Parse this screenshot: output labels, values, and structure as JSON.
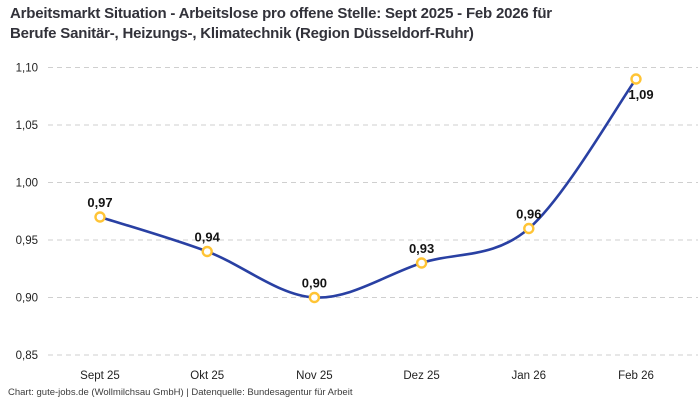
{
  "header": {
    "title_line1": "Arbeitsmarkt Situation - Arbeitslose pro offene Stelle: Sept 2025 - Feb 2026 für",
    "title_line2": "Berufe Sanitär-, Heizungs-, Klimatechnik (Region Düsseldorf-Ruhr)"
  },
  "footer": {
    "source": "Chart: gute-jobs.de (Wollmilchsau GmbH) | Datenquelle: Bundesagentur für Arbeit"
  },
  "chart_data": {
    "type": "line",
    "title": "Arbeitsmarkt Situation - Arbeitslose pro offene Stelle: Sept 2025 - Feb 2026 für Berufe Sanitär-, Heizungs-, Klimatechnik (Region Düsseldorf-Ruhr)",
    "categories": [
      "Sept 25",
      "Okt 25",
      "Nov 25",
      "Dez 25",
      "Jan 26",
      "Feb 26"
    ],
    "values": [
      0.97,
      0.94,
      0.9,
      0.93,
      0.96,
      1.09
    ],
    "point_labels": [
      "0,97",
      "0,94",
      "0,90",
      "0,93",
      "0,96",
      "1,09"
    ],
    "point_label_positions": [
      "above",
      "above",
      "above",
      "above",
      "above",
      "below-right"
    ],
    "ylim": [
      0.85,
      1.1
    ],
    "yticks": [
      {
        "value": 1.1,
        "label": "1,10"
      },
      {
        "value": 1.05,
        "label": "1,05"
      },
      {
        "value": 1.0,
        "label": "1,00"
      },
      {
        "value": 0.95,
        "label": "0,95"
      },
      {
        "value": 0.9,
        "label": "0,90"
      },
      {
        "value": 0.85,
        "label": "0,85"
      }
    ],
    "xlabel": "",
    "ylabel": "",
    "grid": "horizontal-dashed",
    "legend": "none",
    "line_smooth": true,
    "colors": {
      "line": "#2940a3",
      "marker_stroke": "#ffc435",
      "marker_fill": "#ffffff",
      "grid": "#cfcfcf",
      "tick_label": "#1f1f1f",
      "point_label": "#141414"
    }
  }
}
